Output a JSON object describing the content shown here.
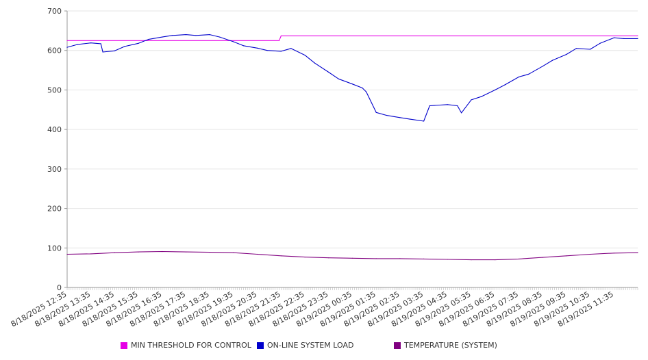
{
  "chart_data": {
    "type": "line",
    "ylim": [
      0,
      700
    ],
    "yticks": [
      0,
      100,
      200,
      300,
      400,
      500,
      600,
      700
    ],
    "grid": true,
    "legend_position": "bottom",
    "x_start": "8/18/2025 12:35",
    "x_end": "8/19/2025 11:35",
    "categories": [
      "8/18/2025 12:35",
      "8/18/2025 13:35",
      "8/18/2025 14:35",
      "8/18/2025 15:35",
      "8/18/2025 16:35",
      "8/18/2025 17:35",
      "8/18/2025 18:35",
      "8/18/2025 19:35",
      "8/18/2025 20:35",
      "8/18/2025 21:35",
      "8/18/2025 22:35",
      "8/18/2025 23:35",
      "8/19/2025 00:35",
      "8/19/2025 01:35",
      "8/19/2025 02:35",
      "8/19/2025 03:35",
      "8/19/2025 04:35",
      "8/19/2025 05:35",
      "8/19/2025 06:35",
      "8/19/2025 07:35",
      "8/19/2025 08:35",
      "8/19/2025 09:35",
      "8/19/2025 10:35",
      "8/19/2025 11:35"
    ],
    "series": [
      {
        "name": "MIN THRESHOLD FOR CONTROL",
        "color": "#e600e6",
        "x": [
          "8/18/2025 12:35",
          "8/18/2025 21:30",
          "8/18/2025 21:35",
          "8/19/2025 12:35"
        ],
        "values": [
          625,
          625,
          637,
          637
        ]
      },
      {
        "name": "ON-LINE SYSTEM LOAD",
        "color": "#0000cc",
        "x": [
          "8/18/2025 12:35",
          "8/18/2025 13:00",
          "8/18/2025 13:35",
          "8/18/2025 14:00",
          "8/18/2025 14:05",
          "8/18/2025 14:35",
          "8/18/2025 15:00",
          "8/18/2025 15:35",
          "8/18/2025 16:00",
          "8/18/2025 16:35",
          "8/18/2025 17:00",
          "8/18/2025 17:35",
          "8/18/2025 18:00",
          "8/18/2025 18:35",
          "8/18/2025 19:00",
          "8/18/2025 19:35",
          "8/18/2025 20:00",
          "8/18/2025 20:35",
          "8/18/2025 21:00",
          "8/18/2025 21:35",
          "8/18/2025 22:00",
          "8/18/2025 22:35",
          "8/18/2025 23:00",
          "8/18/2025 23:35",
          "8/19/2025 00:00",
          "8/19/2025 00:35",
          "8/19/2025 01:00",
          "8/19/2025 01:10",
          "8/19/2025 01:35",
          "8/19/2025 02:00",
          "8/19/2025 02:35",
          "8/19/2025 03:00",
          "8/19/2025 03:35",
          "8/19/2025 03:50",
          "8/19/2025 04:35",
          "8/19/2025 05:00",
          "8/19/2025 05:10",
          "8/19/2025 05:35",
          "8/19/2025 06:00",
          "8/19/2025 06:35",
          "8/19/2025 07:00",
          "8/19/2025 07:35",
          "8/19/2025 08:00",
          "8/19/2025 08:35",
          "8/19/2025 09:00",
          "8/19/2025 09:35",
          "8/19/2025 10:00",
          "8/19/2025 10:35",
          "8/19/2025 11:00",
          "8/19/2025 11:35",
          "8/19/2025 12:00",
          "8/19/2025 12:35"
        ],
        "values": [
          608,
          615,
          619,
          617,
          596,
          599,
          610,
          618,
          628,
          634,
          638,
          640,
          638,
          640,
          634,
          622,
          612,
          606,
          600,
          598,
          605,
          588,
          568,
          545,
          528,
          515,
          505,
          495,
          443,
          436,
          430,
          426,
          421,
          460,
          463,
          460,
          442,
          475,
          483,
          500,
          513,
          533,
          540,
          560,
          575,
          590,
          605,
          603,
          618,
          632,
          630,
          630
        ]
      },
      {
        "name": "TEMPERATURE (SYSTEM)",
        "color": "#800080",
        "x": [
          "8/18/2025 12:35",
          "8/18/2025 13:35",
          "8/18/2025 14:35",
          "8/18/2025 15:35",
          "8/18/2025 16:35",
          "8/18/2025 17:35",
          "8/18/2025 18:35",
          "8/18/2025 19:35",
          "8/18/2025 20:35",
          "8/18/2025 21:35",
          "8/18/2025 22:35",
          "8/18/2025 23:35",
          "8/19/2025 00:35",
          "8/19/2025 01:35",
          "8/19/2025 02:35",
          "8/19/2025 03:35",
          "8/19/2025 04:35",
          "8/19/2025 05:35",
          "8/19/2025 06:35",
          "8/19/2025 07:35",
          "8/19/2025 08:35",
          "8/19/2025 09:35",
          "8/19/2025 10:35",
          "8/19/2025 11:35",
          "8/19/2025 12:35"
        ],
        "values": [
          84,
          85,
          88,
          90,
          91,
          90,
          89,
          88,
          84,
          80,
          77,
          75,
          74,
          73,
          73,
          72,
          71,
          70,
          70,
          72,
          76,
          80,
          84,
          87,
          88
        ]
      }
    ]
  }
}
